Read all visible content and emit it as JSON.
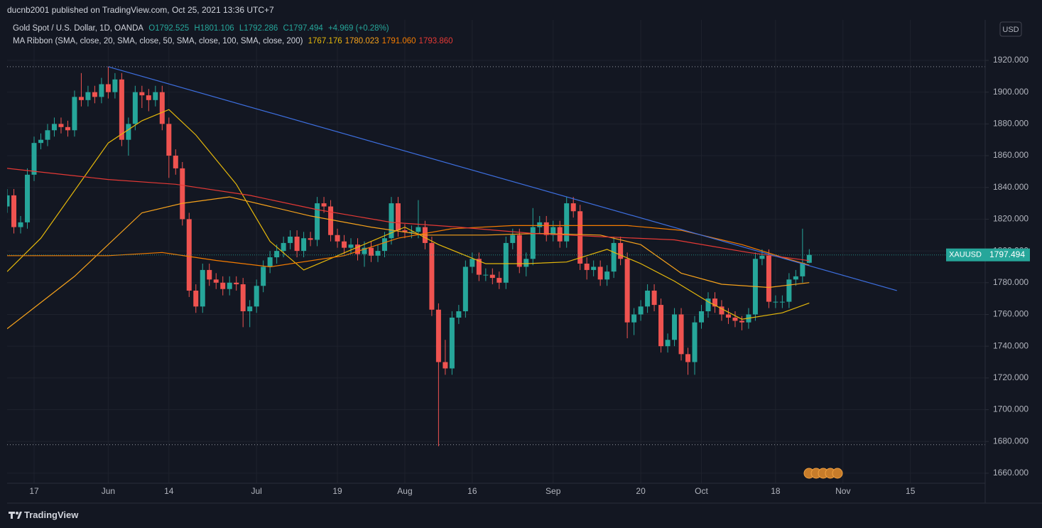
{
  "chart_data": {
    "type": "candlestick",
    "author_line": "ducnb2001 published on TradingView.com, Oct 25, 2021 13:36 UTC+7",
    "title": "Gold Spot / U.S. Dollar, 1D, OANDA",
    "ohlc_labels": [
      "O1792.525",
      "H1801.106",
      "L1792.286",
      "C1797.494"
    ],
    "change_label": "+4.969 (+0.28%)",
    "indicator_label": "MA Ribbon (SMA, close, 20, SMA, close, 50, SMA, close, 100, SMA, close, 200)",
    "symbol": "XAUUSD",
    "currency": "USD",
    "brand": "TradingView",
    "categories": [
      null,
      null,
      null,
      null,
      "17",
      null,
      null,
      null,
      null,
      null,
      null,
      null,
      null,
      null,
      null,
      "Jun",
      null,
      null,
      null,
      null,
      null,
      null,
      null,
      null,
      "14",
      null,
      null,
      null,
      null,
      null,
      null,
      null,
      null,
      null,
      null,
      null,
      null,
      "Jul",
      null,
      null,
      null,
      null,
      null,
      null,
      null,
      null,
      null,
      null,
      null,
      "19",
      null,
      null,
      null,
      null,
      null,
      null,
      null,
      null,
      null,
      "Aug",
      null,
      null,
      null,
      null,
      null,
      null,
      null,
      null,
      null,
      "16",
      null,
      null,
      null,
      null,
      null,
      null,
      null,
      null,
      null,
      null,
      null,
      "Sep",
      null,
      null,
      null,
      null,
      null,
      null,
      null,
      null,
      null,
      null,
      null,
      null,
      "20",
      null,
      null,
      null,
      null,
      null,
      null,
      null,
      null,
      "Oct",
      null,
      null,
      null,
      null,
      null,
      null,
      null,
      null,
      null,
      null,
      "18",
      null,
      null,
      null,
      null,
      null,
      null,
      null,
      null,
      null,
      "Nov",
      null,
      null,
      null,
      null,
      null,
      null,
      null,
      null,
      null,
      "15"
    ],
    "series": [
      {
        "up_color": "#26a69a",
        "down_color": "#ef5350",
        "open": [
          1828,
          1835,
          1815,
          1818,
          1848,
          1868,
          1870,
          1876,
          1880,
          1878,
          1876,
          1897,
          1895,
          1900,
          1897,
          1905,
          1900,
          1908,
          1870,
          1880,
          1900,
          1898,
          1895,
          1900,
          1880,
          1860,
          1852,
          1820,
          1775,
          1765,
          1788,
          1782,
          1780,
          1776,
          1780,
          1779,
          1762,
          1765,
          1778,
          1790,
          1796,
          1800,
          1805,
          1809,
          1800,
          1808,
          1807,
          1830,
          1828,
          1810,
          1806,
          1802,
          1804,
          1798,
          1802,
          1797,
          1800,
          1808,
          1830,
          1813,
          1812,
          1812,
          1815,
          1805,
          1763,
          1730,
          1726,
          1758,
          1762,
          1790,
          1795,
          1785,
          1785,
          1783,
          1780,
          1805,
          1810,
          1790,
          1795,
          1815,
          1818,
          1810,
          1815,
          1806,
          1830,
          1825,
          1792,
          1788,
          1790,
          1782,
          1787,
          1805,
          1795,
          1755,
          1760,
          1765,
          1775,
          1766,
          1740,
          1744,
          1760,
          1735,
          1730,
          1755,
          1762,
          1770,
          1765,
          1760,
          1758,
          1756,
          1755,
          1760,
          1795,
          1797,
          1768,
          1768,
          1768,
          1782,
          1784,
          1792.525,
          null,
          null,
          null,
          null,
          null,
          null,
          null,
          null,
          null,
          null,
          null,
          null,
          null,
          null,
          null
        ],
        "high": [
          1839,
          1839,
          1822,
          1852,
          1872,
          1874,
          1880,
          1884,
          1884,
          1882,
          1901,
          1912,
          1904,
          1904,
          1909,
          1916,
          1912,
          1912,
          1884,
          1904,
          1904,
          1902,
          1904,
          1904,
          1884,
          1864,
          1856,
          1824,
          1779,
          1792,
          1792,
          1786,
          1784,
          1784,
          1784,
          1783,
          1769,
          1782,
          1794,
          1800,
          1804,
          1809,
          1813,
          1813,
          1812,
          1812,
          1834,
          1834,
          1832,
          1814,
          1810,
          1808,
          1808,
          1806,
          1806,
          1804,
          1812,
          1834,
          1834,
          1817,
          1816,
          1832,
          1819,
          1809,
          1767,
          1744,
          1762,
          1766,
          1794,
          1799,
          1799,
          1789,
          1789,
          1787,
          1809,
          1814,
          1814,
          1799,
          1827,
          1822,
          1822,
          1819,
          1819,
          1834,
          1834,
          1829,
          1796,
          1794,
          1794,
          1791,
          1809,
          1809,
          1799,
          1764,
          1769,
          1779,
          1779,
          1770,
          1748,
          1764,
          1764,
          1739,
          1759,
          1766,
          1774,
          1774,
          1769,
          1764,
          1762,
          1759,
          1764,
          1799,
          1801,
          1801,
          1772,
          1772,
          1786,
          1788,
          1814,
          1801.106,
          null,
          null,
          null,
          null,
          null,
          null,
          null,
          null,
          null,
          null,
          null,
          null,
          null,
          null,
          null
        ],
        "low": [
          1824,
          1811,
          1811,
          1814,
          1844,
          1864,
          1866,
          1872,
          1874,
          1872,
          1872,
          1891,
          1891,
          1893,
          1893,
          1896,
          1896,
          1866,
          1860,
          1876,
          1890,
          1888,
          1891,
          1876,
          1846,
          1848,
          1816,
          1771,
          1761,
          1761,
          1778,
          1776,
          1772,
          1772,
          1775,
          1752,
          1752,
          1761,
          1774,
          1786,
          1792,
          1796,
          1801,
          1796,
          1796,
          1803,
          1803,
          1824,
          1806,
          1802,
          1798,
          1798,
          1794,
          1790,
          1793,
          1793,
          1796,
          1804,
          1809,
          1808,
          1808,
          1808,
          1801,
          1759,
          1677,
          1722,
          1722,
          1754,
          1758,
          1786,
          1781,
          1781,
          1779,
          1776,
          1776,
          1801,
          1786,
          1784,
          1791,
          1811,
          1806,
          1806,
          1802,
          1802,
          1821,
          1788,
          1782,
          1784,
          1778,
          1778,
          1783,
          1791,
          1745,
          1747,
          1756,
          1761,
          1762,
          1736,
          1736,
          1740,
          1731,
          1722,
          1722,
          1751,
          1758,
          1761,
          1756,
          1754,
          1752,
          1750,
          1751,
          1756,
          1791,
          1764,
          1764,
          1764,
          1764,
          1778,
          1780,
          1792.286,
          null,
          null,
          null,
          null,
          null,
          null,
          null,
          null,
          null,
          null,
          null,
          null,
          null,
          null,
          null
        ],
        "close": [
          1835,
          1815,
          1818,
          1848,
          1868,
          1870,
          1876,
          1880,
          1878,
          1876,
          1897,
          1895,
          1900,
          1897,
          1905,
          1900,
          1908,
          1870,
          1880,
          1900,
          1898,
          1895,
          1900,
          1880,
          1860,
          1852,
          1820,
          1775,
          1765,
          1788,
          1782,
          1780,
          1776,
          1780,
          1779,
          1762,
          1765,
          1778,
          1790,
          1796,
          1800,
          1805,
          1809,
          1800,
          1808,
          1807,
          1830,
          1828,
          1810,
          1806,
          1802,
          1804,
          1798,
          1802,
          1797,
          1800,
          1808,
          1830,
          1813,
          1812,
          1812,
          1815,
          1805,
          1763,
          1730,
          1726,
          1758,
          1762,
          1790,
          1795,
          1785,
          1785,
          1783,
          1780,
          1805,
          1810,
          1790,
          1795,
          1815,
          1818,
          1810,
          1815,
          1806,
          1830,
          1825,
          1792,
          1788,
          1790,
          1782,
          1787,
          1805,
          1795,
          1755,
          1760,
          1765,
          1775,
          1766,
          1740,
          1744,
          1760,
          1735,
          1730,
          1755,
          1762,
          1770,
          1765,
          1760,
          1758,
          1756,
          1755,
          1760,
          1795,
          1797,
          1768,
          1768,
          1768,
          1782,
          1784,
          1792.525,
          1797.494,
          null,
          null,
          null,
          null,
          null,
          null,
          null,
          null,
          null,
          null,
          null,
          null,
          null,
          null,
          null
        ]
      }
    ],
    "moving_averages": [
      {
        "color": "#e5b80b",
        "legend_value": "1767.176",
        "x": [
          0,
          5,
          15,
          20,
          24,
          28,
          34,
          39,
          44,
          49,
          54,
          59,
          64,
          71,
          77,
          83,
          89,
          94,
          99,
          104,
          109,
          115,
          119
        ],
        "values": [
          1787,
          1808,
          1868,
          1882,
          1889,
          1873,
          1842,
          1806,
          1788,
          1797,
          1806,
          1815,
          1804,
          1792,
          1792,
          1793,
          1801,
          1792,
          1781,
          1768,
          1757,
          1761,
          1767.176
        ]
      },
      {
        "color": "#f7a21b",
        "legend_value": "1780.023",
        "x": [
          0,
          10,
          20,
          26,
          33,
          39,
          45,
          54,
          62,
          71,
          79,
          88,
          94,
          100,
          106,
          113,
          119
        ],
        "values": [
          1751,
          1784,
          1824,
          1830,
          1834,
          1828,
          1822,
          1815,
          1810,
          1810,
          1811,
          1810,
          1804,
          1786,
          1779,
          1777,
          1780.023
        ]
      },
      {
        "color": "#f57c00",
        "legend_value": "1791.060",
        "x": [
          0,
          15,
          23,
          31,
          39,
          50,
          58,
          66,
          75,
          83,
          92,
          100,
          109,
          115,
          119
        ],
        "values": [
          1797,
          1797,
          1799,
          1794,
          1790,
          1797,
          1808,
          1814,
          1816,
          1816,
          1816,
          1813,
          1804,
          1796,
          1791.06
        ]
      },
      {
        "color": "#e53935",
        "legend_value": "1793.860",
        "x": [
          0,
          15,
          25,
          36,
          46,
          57,
          67,
          78,
          88,
          99,
          110,
          119
        ],
        "values": [
          1852,
          1845,
          1842,
          1835,
          1826,
          1818,
          1815,
          1811,
          1809,
          1807,
          1799,
          1793.86
        ]
      }
    ],
    "trendline": {
      "color": "#3d6fe0",
      "x": [
        15,
        132
      ],
      "values": [
        1916,
        1775
      ]
    },
    "hlines": [
      1916,
      1678
    ],
    "ylim": [
      1653.7,
      1945.5
    ],
    "yticks": [
      {
        "value": 1660,
        "label": "1660.000"
      },
      {
        "value": 1680,
        "label": "1680.000"
      },
      {
        "value": 1700,
        "label": "1700.000"
      },
      {
        "value": 1720,
        "label": "1720.000"
      },
      {
        "value": 1740,
        "label": "1740.000"
      },
      {
        "value": 1760,
        "label": "1760.000"
      },
      {
        "value": 1780,
        "label": "1780.000"
      },
      {
        "value": 1800,
        "label": "1800.000"
      },
      {
        "value": 1820,
        "label": "1820.000"
      },
      {
        "value": 1840,
        "label": "1840.000"
      },
      {
        "value": 1860,
        "label": "1860.000"
      },
      {
        "value": 1880,
        "label": "1880.000"
      },
      {
        "value": 1900,
        "label": "1900.000"
      },
      {
        "value": 1920,
        "label": "1920.000"
      }
    ],
    "grid": true
  }
}
